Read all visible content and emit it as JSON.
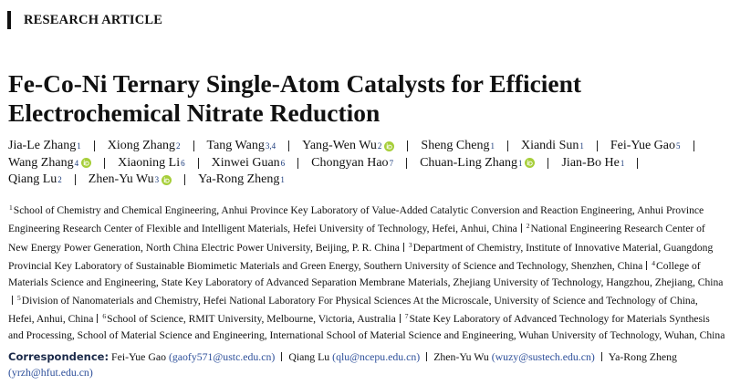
{
  "header": {
    "label": "RESEARCH ARTICLE"
  },
  "title_lines": [
    "Fe-Co-Ni Ternary Single-Atom Catalysts for Efficient",
    "Electrochemical Nitrate Reduction"
  ],
  "authors": {
    "lines": [
      [
        {
          "name": "Jia-Le Zhang",
          "sup": "1",
          "orcid": false
        },
        {
          "name": "Xiong Zhang",
          "sup": "2",
          "orcid": false
        },
        {
          "name": "Tang Wang",
          "sup": "3,4",
          "orcid": false
        },
        {
          "name": "Yang-Wen Wu",
          "sup": "2",
          "orcid": true
        },
        {
          "name": "Sheng Cheng",
          "sup": "1",
          "orcid": false
        },
        {
          "name": "Xiandi Sun",
          "sup": "1",
          "orcid": false
        },
        {
          "name": "Fei-Yue Gao",
          "sup": "5",
          "orcid": false
        }
      ],
      [
        {
          "name": "Wang Zhang",
          "sup": "4",
          "orcid": true
        },
        {
          "name": "Xiaoning Li",
          "sup": "6",
          "orcid": false
        },
        {
          "name": "Xinwei Guan",
          "sup": "6",
          "orcid": false
        },
        {
          "name": "Chongyan Hao",
          "sup": "7",
          "orcid": false
        },
        {
          "name": "Chuan-Ling Zhang",
          "sup": "1",
          "orcid": true
        },
        {
          "name": "Jian-Bo He",
          "sup": "1",
          "orcid": false
        }
      ],
      [
        {
          "name": "Qiang Lu",
          "sup": "2",
          "orcid": false
        },
        {
          "name": "Zhen-Yu Wu",
          "sup": "3",
          "orcid": true
        },
        {
          "name": "Ya-Rong Zheng",
          "sup": "1",
          "orcid": false
        }
      ]
    ]
  },
  "affiliations": [
    {
      "number": "1",
      "text": "School of Chemistry and Chemical Engineering, Anhui Province Key Laboratory of Value-Added Catalytic Conversion and Reaction Engineering, Anhui Province Engineering Research Center of Flexible and Intelligent Materials, Hefei University of Technology, Hefei, Anhui, China"
    },
    {
      "number": "2",
      "text": "National Engineering Research Center of New Energy Power Generation, North China Electric Power University, Beijing, P. R. China"
    },
    {
      "number": "3",
      "text": "Department of Chemistry, Institute of Innovative Material, Guangdong Provincial Key Laboratory of Sustainable Biomimetic Materials and Green Energy, Southern University of Science and Technology, Shenzhen, China"
    },
    {
      "number": "4",
      "text": "College of Materials Science and Engineering, State Key Laboratory of Advanced Separation Membrane Materials, Zhejiang University of Technology, Hangzhou, Zhejiang, China"
    },
    {
      "number": "5",
      "text": "Division of Nanomaterials and Chemistry, Hefei National Laboratory For Physical Sciences At the Microscale, University of Science and Technology of China, Hefei, Anhui, China"
    },
    {
      "number": "6",
      "text": "School of Science, RMIT University, Melbourne, Victoria, Australia"
    },
    {
      "number": "7",
      "text": "State Key Laboratory of Advanced Technology for Materials Synthesis and Processing, School of Material Science and Engineering, International School of Material Science and Engineering, Wuhan University of Technology, Wuhan, China"
    }
  ],
  "correspondence": {
    "label": "Correspondence:",
    "contacts": [
      {
        "name": "Fei-Yue Gao",
        "email": "(gaofy571@ustc.edu.cn)"
      },
      {
        "name": "Qiang Lu",
        "email": "(qlu@ncepu.edu.cn)"
      },
      {
        "name": "Zhen-Yu Wu",
        "email": "(wuzy@sustech.edu.cn)"
      },
      {
        "name": "Ya-Rong Zheng",
        "email": "(yrzh@hfut.edu.cn)"
      }
    ]
  }
}
